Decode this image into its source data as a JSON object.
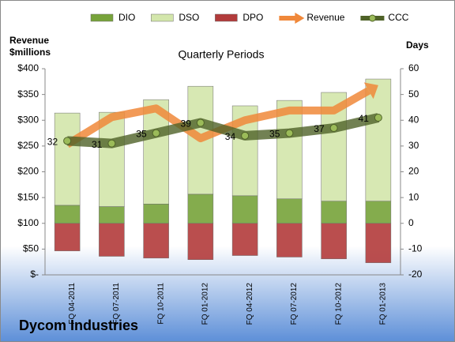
{
  "chart_data": {
    "type": "bar-line",
    "title": "Quarterly Periods",
    "ylabel": "Revenue $millions",
    "y2label": "Days",
    "footer": "Dycom Industries",
    "categories": [
      "FQ 04-2011",
      "FQ 07-2011",
      "FQ 10-2011",
      "FQ 01-2012",
      "FQ 04-2012",
      "FQ 07-2012",
      "FQ 10-2012",
      "FQ 01-2013"
    ],
    "ylim": [
      0,
      400
    ],
    "yticks": [
      {
        "value": 0,
        "label": "$-"
      },
      {
        "value": 50,
        "label": "$50"
      },
      {
        "value": 100,
        "label": "$100"
      },
      {
        "value": 150,
        "label": "$150"
      },
      {
        "value": 200,
        "label": "$200"
      },
      {
        "value": 250,
        "label": "$250"
      },
      {
        "value": 300,
        "label": "$300"
      },
      {
        "value": 350,
        "label": "$350"
      },
      {
        "value": 400,
        "label": "$400"
      }
    ],
    "y2lim": [
      -20,
      60
    ],
    "y2ticks": [
      -20,
      -10,
      0,
      10,
      20,
      30,
      40,
      50,
      60
    ],
    "legend": "top",
    "series": [
      {
        "name": "DIO",
        "type": "bar",
        "axis": "y2",
        "color": "#77a33a",
        "values": [
          7,
          6.5,
          7.5,
          11.3,
          10.7,
          9.5,
          8.6,
          8.6
        ]
      },
      {
        "name": "DSO",
        "type": "bar",
        "axis": "y2",
        "color": "#d3e6ab",
        "values": [
          35.8,
          36.6,
          40.5,
          41.9,
          34.9,
          38.2,
          42.2,
          47.4
        ]
      },
      {
        "name": "DPO",
        "type": "bar",
        "axis": "y2",
        "color": "#b23b3b",
        "values": [
          -10.7,
          -12.8,
          -13.5,
          -14.1,
          -12.5,
          -13.1,
          -13.8,
          -15.3
        ]
      },
      {
        "name": "Revenue",
        "type": "arrow",
        "axis": "y",
        "color": "#f0883a",
        "values": [
          253,
          306,
          323,
          265,
          300,
          319,
          319,
          368
        ]
      },
      {
        "name": "CCC",
        "type": "line",
        "axis": "y2",
        "color": "#4f6228",
        "values": [
          32,
          31,
          35,
          39,
          34,
          35,
          37,
          41
        ]
      }
    ]
  }
}
